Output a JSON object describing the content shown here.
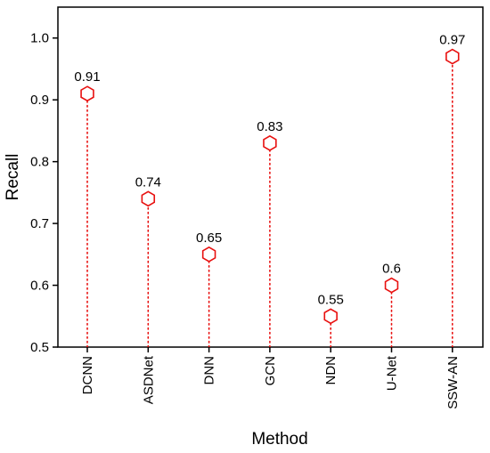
{
  "chart_data": {
    "type": "scatter",
    "style": "lollipop",
    "categories": [
      "DCNN",
      "ASDNet",
      "DNN",
      "GCN",
      "NDN",
      "U-Net",
      "SSW-AN"
    ],
    "values": [
      0.91,
      0.74,
      0.65,
      0.83,
      0.55,
      0.6,
      0.97
    ],
    "data_labels": [
      "0.91",
      "0.74",
      "0.65",
      "0.83",
      "0.55",
      "0.6",
      "0.97"
    ],
    "xlabel": "Method",
    "ylabel": "Recall",
    "ylim": [
      0.5,
      1.05
    ],
    "yticks": [
      0.5,
      0.6,
      0.7,
      0.8,
      0.9,
      1.0
    ],
    "ytick_labels": [
      "0.5",
      "0.6",
      "0.7",
      "0.8",
      "0.9",
      "1.0"
    ],
    "grid": false,
    "marker": "hexagon",
    "series_color": "#e8100f",
    "stem_style": "dotted"
  }
}
